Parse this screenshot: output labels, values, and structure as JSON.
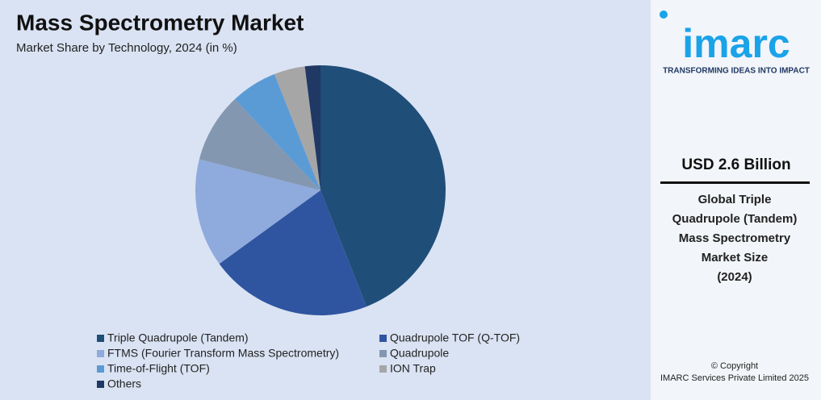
{
  "chart_data": {
    "type": "pie",
    "title": "Mass Spectrometry Market",
    "subtitle": "Market Share by Technology, 2024 (in %)",
    "categories": [
      "Triple Quadrupole (Tandem)",
      "Quadrupole TOF (Q-TOF)",
      "FTMS (Fourier Transform Mass Spectrometry)",
      "Quadrupole",
      "Time-of-Flight (TOF)",
      "ION Trap",
      "Others"
    ],
    "values": [
      44,
      21,
      14,
      9,
      6,
      4,
      2
    ],
    "colors": [
      "#1f4e79",
      "#2f55a0",
      "#8faadc",
      "#8497b0",
      "#5b9bd5",
      "#a6a6a6",
      "#203864"
    ]
  },
  "sidebar": {
    "logo": "imarc",
    "tagline": "TRANSFORMING IDEAS INTO IMPACT",
    "headline": "USD 2.6 Billion",
    "description": [
      "Global Triple",
      "Quadrupole (Tandem)",
      "Mass Spectrometry",
      "Market Size",
      "(2024)"
    ],
    "copyright": [
      "© Copyright",
      "IMARC Services Private Limited 2025"
    ]
  }
}
